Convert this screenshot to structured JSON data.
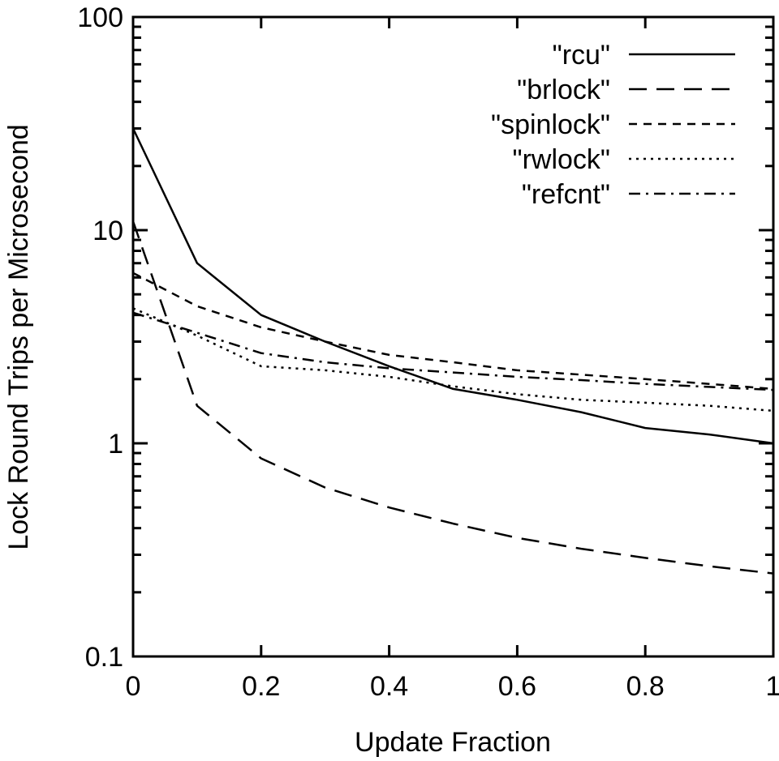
{
  "chart_data": {
    "type": "line",
    "xlabel": "Update Fraction",
    "ylabel": "Lock Round Trips per Microsecond",
    "xlim": [
      0,
      1
    ],
    "ylim": [
      0.1,
      100
    ],
    "yscale": "log",
    "x_ticks": [
      "0",
      "0.2",
      "0.4",
      "0.6",
      "0.8",
      "1"
    ],
    "y_ticks": [
      "0.1",
      "1",
      "10",
      "100"
    ],
    "legend_position": "top-right",
    "grid": false,
    "x": [
      0,
      0.1,
      0.2,
      0.3,
      0.4,
      0.5,
      0.6,
      0.7,
      0.8,
      0.9,
      1.0
    ],
    "series": [
      {
        "name": "\"rcu\"",
        "dash": "solid",
        "values": [
          30,
          7,
          4,
          3,
          2.3,
          1.8,
          1.6,
          1.4,
          1.18,
          1.1,
          1.0
        ]
      },
      {
        "name": "\"brlock\"",
        "dash": "long-dash",
        "values": [
          11,
          1.5,
          0.85,
          0.62,
          0.5,
          0.42,
          0.36,
          0.32,
          0.29,
          0.265,
          0.245
        ]
      },
      {
        "name": "\"spinlock\"",
        "dash": "short-dash",
        "values": [
          6.3,
          4.4,
          3.5,
          3.0,
          2.6,
          2.4,
          2.2,
          2.1,
          2.0,
          1.9,
          1.8
        ]
      },
      {
        "name": "\"rwlock\"",
        "dash": "dotted",
        "values": [
          4.3,
          3.2,
          2.3,
          2.2,
          2.05,
          1.85,
          1.7,
          1.6,
          1.55,
          1.5,
          1.42
        ]
      },
      {
        "name": "\"refcnt\"",
        "dash": "dash-dot",
        "values": [
          4.1,
          3.3,
          2.65,
          2.4,
          2.25,
          2.15,
          2.05,
          1.98,
          1.9,
          1.84,
          1.78
        ]
      }
    ]
  }
}
